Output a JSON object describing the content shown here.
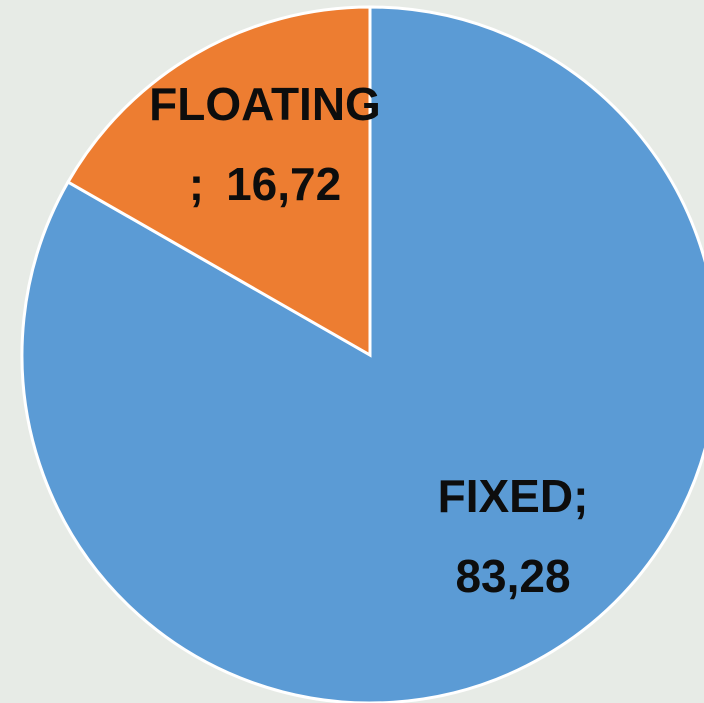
{
  "chart_data": {
    "type": "pie",
    "categories": [
      "FIXED",
      "FLOATING"
    ],
    "values": [
      83.28,
      16.72
    ],
    "value_labels": [
      "83,28",
      "16,72"
    ],
    "separator": ";",
    "colors": [
      "#5b9bd5",
      "#ed7d31"
    ]
  }
}
